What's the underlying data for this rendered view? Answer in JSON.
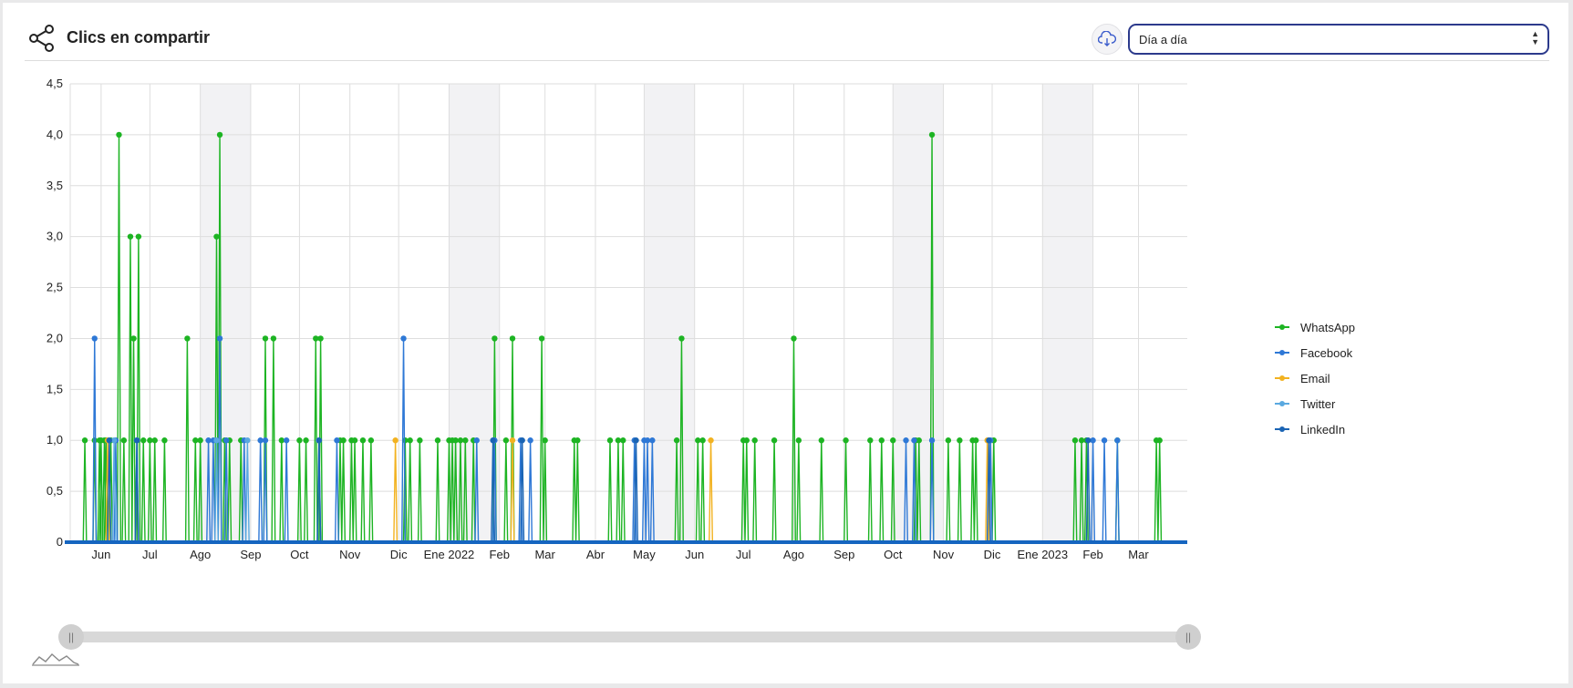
{
  "header": {
    "title": "Clics en compartir",
    "select_value": "Día a día"
  },
  "colors": {
    "whatsapp": "#1db423",
    "facebook": "#2e78d6",
    "email": "#f2b220",
    "twitter": "#5aa9e0",
    "linkedin": "#1a64b4",
    "baseline": "#1565c0"
  },
  "icons": [
    "share-icon",
    "cloud-download-icon",
    "select-arrows-icon",
    "scrollbar-grip-icon",
    "chart-preview-icon"
  ],
  "chart_data": {
    "type": "line",
    "x_type": "date",
    "x_range": [
      "2021-05-13",
      "2023-03-31"
    ],
    "ylim": [
      0,
      4.5
    ],
    "yticks": [
      "0",
      "0,5",
      "1,0",
      "1,5",
      "2,0",
      "2,5",
      "3,0",
      "3,5",
      "4,0",
      "4,5"
    ],
    "xticks": [
      {
        "label": "Jun",
        "date": "2021-06-01"
      },
      {
        "label": "Jul",
        "date": "2021-07-01"
      },
      {
        "label": "Ago",
        "date": "2021-08-01"
      },
      {
        "label": "Sep",
        "date": "2021-09-01"
      },
      {
        "label": "Oct",
        "date": "2021-10-01"
      },
      {
        "label": "Nov",
        "date": "2021-11-01"
      },
      {
        "label": "Dic",
        "date": "2021-12-01"
      },
      {
        "label": "Ene 2022",
        "date": "2022-01-01"
      },
      {
        "label": "Feb",
        "date": "2022-02-01"
      },
      {
        "label": "Mar",
        "date": "2022-03-01"
      },
      {
        "label": "Abr",
        "date": "2022-04-01"
      },
      {
        "label": "May",
        "date": "2022-05-01"
      },
      {
        "label": "Jun",
        "date": "2022-06-01"
      },
      {
        "label": "Jul",
        "date": "2022-07-01"
      },
      {
        "label": "Ago",
        "date": "2022-08-01"
      },
      {
        "label": "Sep",
        "date": "2022-09-01"
      },
      {
        "label": "Oct",
        "date": "2022-10-01"
      },
      {
        "label": "Nov",
        "date": "2022-11-01"
      },
      {
        "label": "Dic",
        "date": "2022-12-01"
      },
      {
        "label": "Ene 2023",
        "date": "2023-01-01"
      },
      {
        "label": "Feb",
        "date": "2023-02-01"
      },
      {
        "label": "Mar",
        "date": "2023-03-01"
      }
    ],
    "shaded_bands": [
      [
        "2021-08-01",
        "2021-09-01"
      ],
      [
        "2022-01-01",
        "2022-02-01"
      ],
      [
        "2022-05-01",
        "2022-06-01"
      ],
      [
        "2022-10-01",
        "2022-11-01"
      ],
      [
        "2023-01-01",
        "2023-02-01"
      ]
    ],
    "grid": true,
    "legend_position": "right",
    "series": [
      {
        "name": "WhatsApp",
        "color": "#1db423",
        "points": [
          [
            "2021-05-22",
            1
          ],
          [
            "2021-05-28",
            1
          ],
          [
            "2021-05-31",
            1
          ],
          [
            "2021-06-01",
            1
          ],
          [
            "2021-06-03",
            1
          ],
          [
            "2021-06-04",
            1
          ],
          [
            "2021-06-07",
            1
          ],
          [
            "2021-06-12",
            4
          ],
          [
            "2021-06-15",
            1
          ],
          [
            "2021-06-19",
            3
          ],
          [
            "2021-06-21",
            2
          ],
          [
            "2021-06-24",
            3
          ],
          [
            "2021-06-27",
            1
          ],
          [
            "2021-07-01",
            1
          ],
          [
            "2021-07-04",
            1
          ],
          [
            "2021-07-10",
            1
          ],
          [
            "2021-07-24",
            2
          ],
          [
            "2021-07-29",
            1
          ],
          [
            "2021-08-01",
            1
          ],
          [
            "2021-08-11",
            3
          ],
          [
            "2021-08-13",
            4
          ],
          [
            "2021-08-16",
            1
          ],
          [
            "2021-08-19",
            1
          ],
          [
            "2021-08-26",
            1
          ],
          [
            "2021-09-10",
            2
          ],
          [
            "2021-09-15",
            2
          ],
          [
            "2021-09-20",
            1
          ],
          [
            "2021-10-01",
            1
          ],
          [
            "2021-10-05",
            1
          ],
          [
            "2021-10-11",
            2
          ],
          [
            "2021-10-14",
            2
          ],
          [
            "2021-10-26",
            1
          ],
          [
            "2021-10-28",
            1
          ],
          [
            "2021-11-02",
            1
          ],
          [
            "2021-11-04",
            1
          ],
          [
            "2021-11-09",
            1
          ],
          [
            "2021-11-14",
            1
          ],
          [
            "2021-12-05",
            1
          ],
          [
            "2021-12-08",
            1
          ],
          [
            "2021-12-14",
            1
          ],
          [
            "2021-12-25",
            1
          ],
          [
            "2022-01-01",
            1
          ],
          [
            "2022-01-03",
            1
          ],
          [
            "2022-01-05",
            1
          ],
          [
            "2022-01-08",
            1
          ],
          [
            "2022-01-11",
            1
          ],
          [
            "2022-01-16",
            1
          ],
          [
            "2022-01-29",
            2
          ],
          [
            "2022-02-05",
            1
          ],
          [
            "2022-02-09",
            2
          ],
          [
            "2022-02-27",
            2
          ],
          [
            "2022-03-01",
            1
          ],
          [
            "2022-03-19",
            1
          ],
          [
            "2022-03-21",
            1
          ],
          [
            "2022-04-10",
            1
          ],
          [
            "2022-04-15",
            1
          ],
          [
            "2022-04-18",
            1
          ],
          [
            "2022-05-21",
            1
          ],
          [
            "2022-05-24",
            2
          ],
          [
            "2022-06-03",
            1
          ],
          [
            "2022-06-06",
            1
          ],
          [
            "2022-07-01",
            1
          ],
          [
            "2022-07-03",
            1
          ],
          [
            "2022-07-08",
            1
          ],
          [
            "2022-07-20",
            1
          ],
          [
            "2022-08-01",
            2
          ],
          [
            "2022-08-04",
            1
          ],
          [
            "2022-08-18",
            1
          ],
          [
            "2022-09-02",
            1
          ],
          [
            "2022-09-17",
            1
          ],
          [
            "2022-09-24",
            1
          ],
          [
            "2022-10-01",
            1
          ],
          [
            "2022-10-15",
            1
          ],
          [
            "2022-10-17",
            1
          ],
          [
            "2022-10-25",
            4
          ],
          [
            "2022-11-04",
            1
          ],
          [
            "2022-11-11",
            1
          ],
          [
            "2022-11-19",
            1
          ],
          [
            "2022-11-21",
            1
          ],
          [
            "2022-12-02",
            1
          ],
          [
            "2023-01-21",
            1
          ],
          [
            "2023-01-25",
            1
          ],
          [
            "2023-01-28",
            1
          ],
          [
            "2023-02-16",
            1
          ],
          [
            "2023-03-12",
            1
          ],
          [
            "2023-03-14",
            1
          ]
        ]
      },
      {
        "name": "Facebook",
        "color": "#2e78d6",
        "points": [
          [
            "2021-05-28",
            2
          ],
          [
            "2021-06-10",
            1
          ],
          [
            "2021-06-23",
            1
          ],
          [
            "2021-08-06",
            1
          ],
          [
            "2021-08-09",
            1
          ],
          [
            "2021-08-13",
            2
          ],
          [
            "2021-08-17",
            1
          ],
          [
            "2021-08-28",
            1
          ],
          [
            "2021-09-07",
            1
          ],
          [
            "2021-09-10",
            1
          ],
          [
            "2021-09-23",
            1
          ],
          [
            "2021-10-13",
            1
          ],
          [
            "2021-10-24",
            1
          ],
          [
            "2021-12-04",
            2
          ],
          [
            "2022-01-18",
            1
          ],
          [
            "2022-01-29",
            1
          ],
          [
            "2022-02-14",
            1
          ],
          [
            "2022-02-20",
            1
          ],
          [
            "2022-04-25",
            1
          ],
          [
            "2022-05-01",
            1
          ],
          [
            "2022-05-03",
            1
          ],
          [
            "2022-05-06",
            1
          ],
          [
            "2022-10-09",
            1
          ],
          [
            "2022-10-14",
            1
          ],
          [
            "2022-10-25",
            1
          ],
          [
            "2022-11-30",
            1
          ],
          [
            "2023-02-01",
            1
          ],
          [
            "2023-02-08",
            1
          ],
          [
            "2023-02-16",
            1
          ]
        ]
      },
      {
        "name": "Email",
        "color": "#f2b220",
        "points": [
          [
            "2021-06-05",
            1
          ],
          [
            "2021-11-29",
            1
          ],
          [
            "2022-02-09",
            1
          ],
          [
            "2022-06-11",
            1
          ],
          [
            "2022-11-28",
            1
          ]
        ]
      },
      {
        "name": "Twitter",
        "color": "#5aa9e0",
        "points": [
          [
            "2021-06-09",
            1
          ],
          [
            "2021-08-11",
            1
          ],
          [
            "2021-08-30",
            1
          ]
        ]
      },
      {
        "name": "LinkedIn",
        "color": "#1a64b4",
        "points": [
          [
            "2021-06-06",
            1
          ],
          [
            "2021-06-23",
            1
          ],
          [
            "2021-10-13",
            1
          ],
          [
            "2022-01-28",
            1
          ],
          [
            "2022-02-15",
            1
          ],
          [
            "2022-04-26",
            1
          ],
          [
            "2022-11-29",
            1
          ],
          [
            "2023-01-29",
            1
          ]
        ]
      }
    ]
  }
}
